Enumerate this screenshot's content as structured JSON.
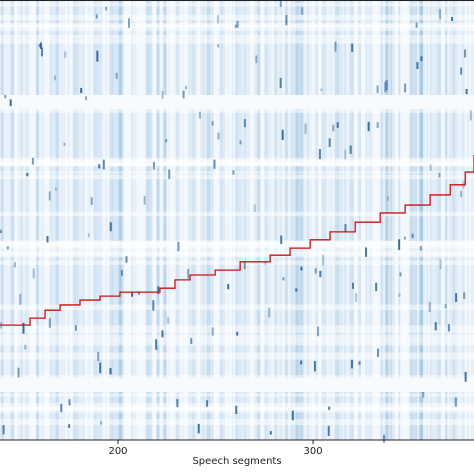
{
  "chart_data": {
    "type": "line",
    "x_label": "Speech segments",
    "xlim": [
      139.5,
      382.5
    ],
    "xticks": [
      200,
      300
    ],
    "ylim": [
      0,
      100
    ],
    "series": [
      {
        "color": "#cc1111",
        "x": [
          139.5,
          154.9,
          162.6,
          170.3,
          180.5,
          190.8,
          201.0,
          221.5,
          229.2,
          236.9,
          249.8,
          262.6,
          278.0,
          288.2,
          298.5,
          308.7,
          321.6,
          334.4,
          347.2,
          360.0,
          370.3,
          378.0,
          382.5
        ],
        "values": [
          26.1,
          27.7,
          29.5,
          30.7,
          31.8,
          32.7,
          33.6,
          34.5,
          36.4,
          37.5,
          38.6,
          40.5,
          42.0,
          43.6,
          45.5,
          47.3,
          49.5,
          51.6,
          53.4,
          55.7,
          58.0,
          60.9,
          64.8
        ]
      }
    ]
  }
}
